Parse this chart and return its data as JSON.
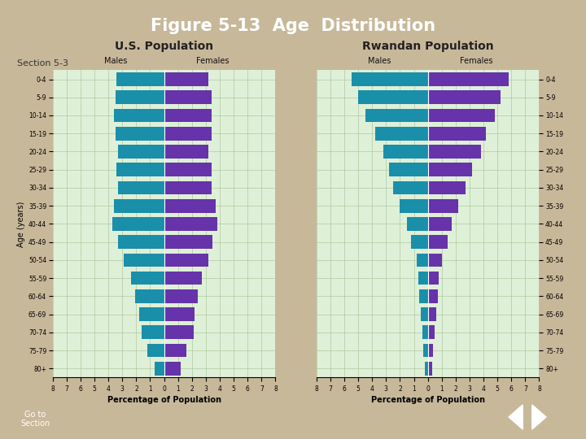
{
  "age_groups": [
    "80+",
    "75-79",
    "70-74",
    "65-69",
    "60-64",
    "55-59",
    "50-54",
    "45-49",
    "40-44",
    "35-39",
    "30-34",
    "25-29",
    "20-24",
    "15-19",
    "10-14",
    "5-9",
    "0-4"
  ],
  "us_males": [
    0.7,
    1.2,
    1.6,
    1.8,
    2.1,
    2.4,
    2.9,
    3.3,
    3.7,
    3.6,
    3.3,
    3.4,
    3.3,
    3.5,
    3.6,
    3.5,
    3.4
  ],
  "us_females": [
    1.2,
    1.6,
    2.1,
    2.2,
    2.4,
    2.7,
    3.2,
    3.5,
    3.8,
    3.7,
    3.4,
    3.4,
    3.2,
    3.4,
    3.4,
    3.4,
    3.2
  ],
  "rw_males": [
    0.2,
    0.3,
    0.4,
    0.5,
    0.6,
    0.7,
    0.8,
    1.2,
    1.5,
    2.0,
    2.5,
    2.8,
    3.2,
    3.8,
    4.5,
    5.0,
    5.5
  ],
  "rw_females": [
    0.3,
    0.4,
    0.5,
    0.6,
    0.7,
    0.8,
    1.0,
    1.4,
    1.7,
    2.2,
    2.7,
    3.2,
    3.8,
    4.2,
    4.8,
    5.2,
    5.8
  ],
  "male_color": "#1a8faa",
  "female_color": "#6633aa",
  "bg_color": "#dff0d8",
  "grid_color": "#b0c8a0",
  "title": "Figure 5-13  Age  Distribution",
  "us_title": "U.S. Population",
  "rw_title": "Rwandan Population",
  "xlabel": "Percentage of Population",
  "ylabel": "Age (years)",
  "xlim": 8,
  "section_label": "Section 5-3",
  "goto_label": "Go to\nSection"
}
